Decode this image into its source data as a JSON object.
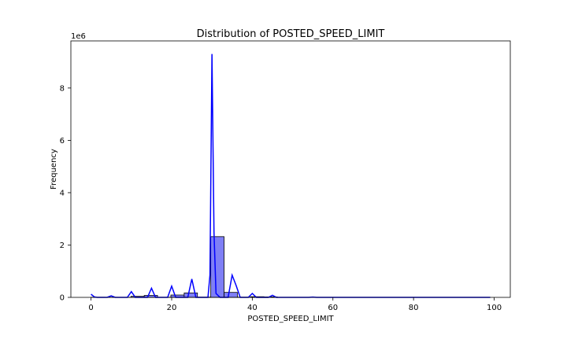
{
  "chart_data": {
    "type": "histogram",
    "title": "Distribution of POSTED_SPEED_LIMIT",
    "xlabel": "POSTED_SPEED_LIMIT",
    "ylabel": "Frequency",
    "y_multiplier_label": "1e6",
    "xlim": [
      -5,
      104
    ],
    "ylim": [
      0,
      9800000
    ],
    "x_ticks": [
      0,
      20,
      40,
      60,
      80,
      100
    ],
    "y_ticks": [
      0,
      2000000,
      4000000,
      6000000,
      8000000
    ],
    "y_tick_labels": [
      "0",
      "2",
      "4",
      "6",
      "8"
    ],
    "bar_fill": "#7f7ff5",
    "bar_edge": "#000000",
    "kde_color": "#0000ff",
    "grid": false,
    "bins": [
      {
        "x0": 0,
        "x1": 3.3,
        "value": 5000
      },
      {
        "x0": 3.3,
        "x1": 6.6,
        "value": 4000
      },
      {
        "x0": 6.6,
        "x1": 9.9,
        "value": 2000
      },
      {
        "x0": 9.9,
        "x1": 13.2,
        "value": 40000
      },
      {
        "x0": 13.2,
        "x1": 16.5,
        "value": 75000
      },
      {
        "x0": 16.5,
        "x1": 19.8,
        "value": 5000
      },
      {
        "x0": 19.8,
        "x1": 23.1,
        "value": 90000
      },
      {
        "x0": 23.1,
        "x1": 26.4,
        "value": 170000
      },
      {
        "x0": 26.4,
        "x1": 29.7,
        "value": 10000
      },
      {
        "x0": 29.7,
        "x1": 33.0,
        "value": 2320000
      },
      {
        "x0": 33.0,
        "x1": 36.3,
        "value": 190000
      },
      {
        "x0": 36.3,
        "x1": 39.6,
        "value": 8000
      },
      {
        "x0": 39.6,
        "x1": 42.9,
        "value": 25000
      },
      {
        "x0": 42.9,
        "x1": 46.2,
        "value": 18000
      },
      {
        "x0": 46.2,
        "x1": 49.5,
        "value": 3000
      },
      {
        "x0": 49.5,
        "x1": 52.8,
        "value": 1000
      },
      {
        "x0": 52.8,
        "x1": 56.1,
        "value": 3000
      },
      {
        "x0": 56.1,
        "x1": 59.4,
        "value": 1000
      },
      {
        "x0": 59.4,
        "x1": 62.7,
        "value": 1000
      },
      {
        "x0": 62.7,
        "x1": 66.0,
        "value": 1000
      },
      {
        "x0": 66.0,
        "x1": 69.3,
        "value": 1000
      },
      {
        "x0": 69.3,
        "x1": 72.6,
        "value": 1000
      },
      {
        "x0": 72.6,
        "x1": 75.9,
        "value": 1000
      },
      {
        "x0": 75.9,
        "x1": 79.2,
        "value": 1000
      },
      {
        "x0": 79.2,
        "x1": 82.5,
        "value": 1000
      },
      {
        "x0": 82.5,
        "x1": 85.8,
        "value": 1000
      },
      {
        "x0": 85.8,
        "x1": 89.1,
        "value": 1000
      },
      {
        "x0": 89.1,
        "x1": 92.4,
        "value": 1000
      },
      {
        "x0": 92.4,
        "x1": 95.7,
        "value": 1000
      },
      {
        "x0": 95.7,
        "x1": 99.0,
        "value": 1000
      }
    ],
    "kde": {
      "x": [
        0,
        0.8,
        1.5,
        4,
        5,
        6,
        9,
        10,
        11,
        14,
        15,
        16,
        19,
        20,
        21,
        24,
        25,
        26,
        29,
        29.5,
        30,
        30.5,
        31,
        32,
        33,
        34,
        35,
        36,
        37,
        39,
        40,
        41,
        44,
        45,
        46,
        54,
        55,
        56,
        60,
        99
      ],
      "y": [
        120000,
        20000,
        0,
        0,
        60000,
        0,
        0,
        220000,
        0,
        0,
        350000,
        0,
        0,
        430000,
        0,
        0,
        700000,
        0,
        0,
        850000,
        9300000,
        2500000,
        150000,
        0,
        0,
        0,
        850000,
        450000,
        0,
        0,
        150000,
        0,
        0,
        80000,
        0,
        0,
        10000,
        0,
        0,
        0
      ]
    }
  }
}
